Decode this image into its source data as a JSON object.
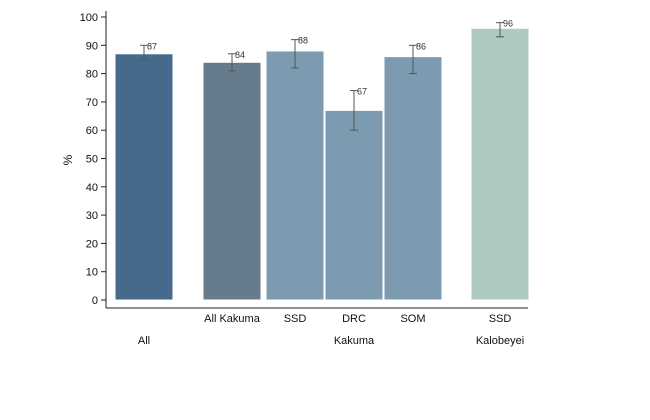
{
  "chart_data": {
    "type": "bar",
    "ylabel": "%",
    "ylim": [
      0,
      100
    ],
    "yticks": [
      0,
      10,
      20,
      30,
      40,
      50,
      60,
      70,
      80,
      90,
      100
    ],
    "grid": false,
    "bars": [
      {
        "category": "",
        "group": "All",
        "value": 87,
        "ci": [
          85,
          90
        ],
        "label": "87",
        "color": "#456a8c"
      },
      {
        "category": "All Kakuma",
        "group": "Kakuma",
        "value": 84,
        "ci": [
          81,
          87
        ],
        "label": "84",
        "color": "#667b8c"
      },
      {
        "category": "SSD",
        "group": "Kakuma",
        "value": 88,
        "ci": [
          82,
          92
        ],
        "label": "88",
        "color": "#7c9bb1"
      },
      {
        "category": "DRC",
        "group": "Kakuma",
        "value": 67,
        "ci": [
          60,
          74
        ],
        "label": "67",
        "color": "#7c9bb1"
      },
      {
        "category": "SOM",
        "group": "Kakuma",
        "value": 86,
        "ci": [
          80,
          90
        ],
        "label": "86",
        "color": "#7c9bb1"
      },
      {
        "category": "SSD",
        "group": "Kalobeyei",
        "value": 96,
        "ci": [
          93,
          98
        ],
        "label": "96",
        "color": "#aec8c2"
      }
    ],
    "groups": [
      "All",
      "Kakuma",
      "Kalobeyei"
    ]
  }
}
